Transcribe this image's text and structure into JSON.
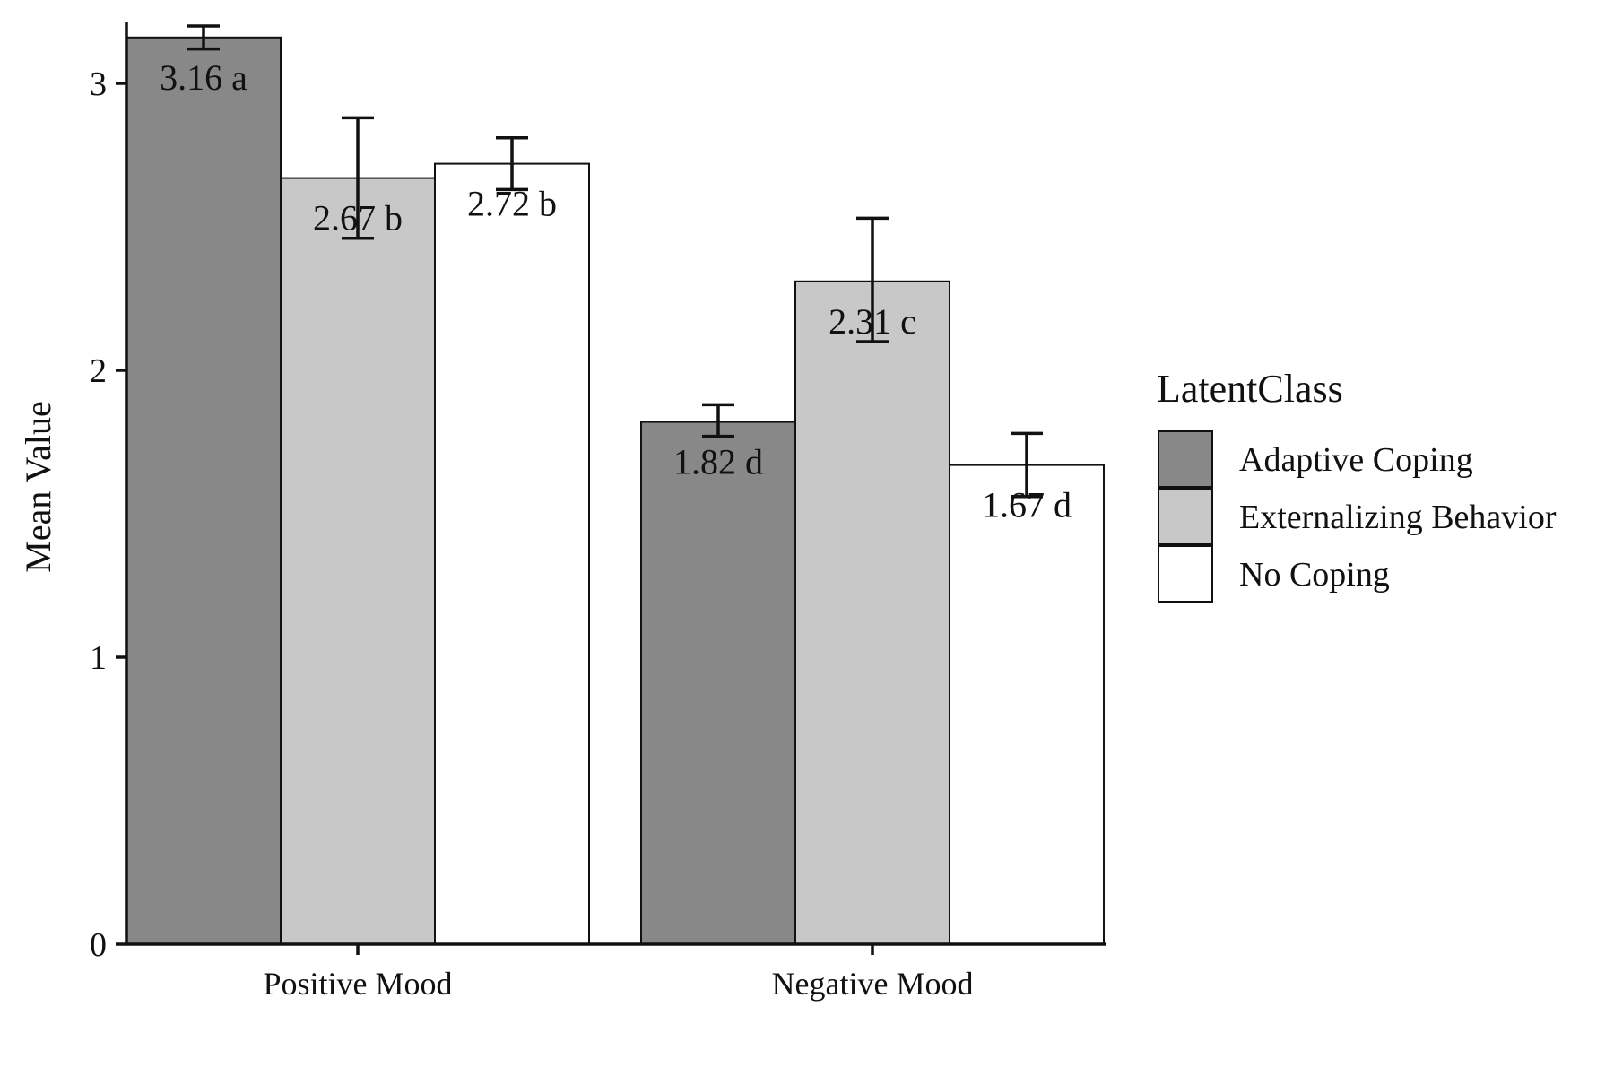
{
  "chart_data": {
    "type": "bar",
    "title": "",
    "xlabel": "",
    "ylabel": "Mean Value",
    "ylim": [
      0,
      3.2
    ],
    "yticks": [
      0,
      1,
      2,
      3
    ],
    "grid": false,
    "legend": {
      "title": "LatentClass",
      "position": "right"
    },
    "categories": [
      "Positive Mood",
      "Negative Mood"
    ],
    "series": [
      {
        "name": "Adaptive Coping",
        "color": "#888888",
        "values": [
          3.16,
          1.82
        ],
        "err_low": [
          3.12,
          1.77
        ],
        "err_high": [
          3.2,
          1.88
        ],
        "labels": [
          "3.16 a",
          "1.82 d"
        ]
      },
      {
        "name": "Externalizing Behavior",
        "color": "#c8c8c8",
        "values": [
          2.67,
          2.31
        ],
        "err_low": [
          2.46,
          2.1
        ],
        "err_high": [
          2.88,
          2.53
        ],
        "labels": [
          "2.67 b",
          "2.31 c"
        ]
      },
      {
        "name": "No Coping",
        "color": "#ffffff",
        "values": [
          2.72,
          1.67
        ],
        "err_low": [
          2.63,
          1.56
        ],
        "err_high": [
          2.81,
          1.78
        ],
        "labels": [
          "2.72 b",
          "1.67 d"
        ]
      }
    ]
  }
}
